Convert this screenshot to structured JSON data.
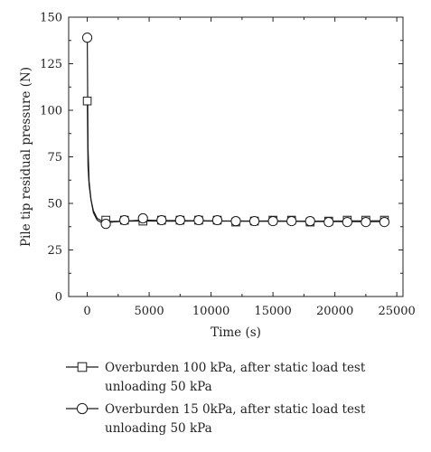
{
  "chart_data": {
    "type": "line",
    "xlabel": "Time (s)",
    "ylabel": "Pile tip residual pressure (N)",
    "xlim": [
      -1500,
      25500
    ],
    "ylim": [
      0,
      150
    ],
    "xticks": [
      0,
      5000,
      10000,
      15000,
      20000,
      25000
    ],
    "yticks": [
      0,
      25,
      50,
      75,
      100,
      125,
      150
    ],
    "grid": false,
    "legend_position": "below",
    "series": [
      {
        "name": "Overburden 100 kPa, after static load test unloading 50 kPa",
        "name_lines": [
          "Overburden 100 kPa, after static load test",
          "unloading 50 kPa"
        ],
        "marker": "square",
        "line_x": [
          0,
          60,
          150,
          300,
          500,
          800,
          1200,
          1500,
          2000,
          3000,
          4500,
          6000,
          7500,
          9000,
          10500,
          12000,
          13500,
          15000,
          16500,
          18000,
          19500,
          21000,
          22500,
          24000
        ],
        "line_y": [
          105,
          70,
          60,
          52,
          46,
          42,
          40.5,
          40.5,
          40.3,
          40.5,
          40.6,
          40.5,
          40.5,
          40.6,
          40.5,
          40.6,
          40.5,
          40.6,
          40.5,
          40.5,
          40.5,
          40.6,
          40.6,
          40.7
        ],
        "marker_x": [
          0,
          1500,
          3000,
          4500,
          6000,
          7500,
          9000,
          10500,
          12000,
          13500,
          15000,
          16500,
          18000,
          19500,
          21000,
          22500,
          24000
        ],
        "marker_y": [
          105,
          41,
          41,
          40.5,
          41,
          41,
          41,
          41,
          40,
          40.5,
          41,
          41,
          40,
          40.5,
          41,
          41,
          41
        ]
      },
      {
        "name": "Overburden 15 0kPa, after static load test unloading 50 kPa",
        "name_lines": [
          "Overburden 15 0kPa, after static load test",
          "unloading 50 kPa"
        ],
        "marker": "circle",
        "line_x": [
          0,
          60,
          150,
          300,
          500,
          800,
          1200,
          1500,
          2000,
          3000,
          4500,
          6000,
          7500,
          9000,
          10500,
          12000,
          13500,
          15000,
          16500,
          18000,
          19500,
          21000,
          22500,
          24000
        ],
        "line_y": [
          139,
          80,
          62,
          52,
          45,
          41,
          39.5,
          39.5,
          40,
          40.5,
          41,
          40.8,
          40.8,
          40.7,
          40.6,
          40.5,
          40.5,
          40.4,
          40.4,
          40.3,
          40.3,
          40.2,
          40.2,
          40.2
        ],
        "marker_x": [
          0,
          1500,
          3000,
          4500,
          6000,
          7500,
          9000,
          10500,
          12000,
          13500,
          15000,
          16500,
          18000,
          19500,
          21000,
          22500,
          24000
        ],
        "marker_y": [
          139,
          39,
          41,
          42,
          41,
          41,
          41,
          41,
          40.5,
          40.5,
          40.5,
          40.5,
          40.5,
          40,
          40,
          40,
          40
        ]
      }
    ]
  }
}
